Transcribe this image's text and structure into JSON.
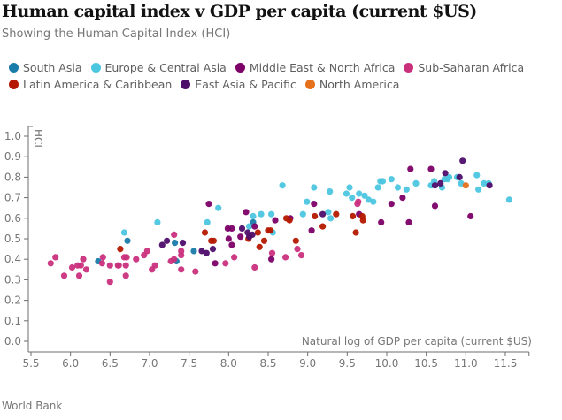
{
  "title": "Human capital index v GDP per capita (current $US)",
  "subtitle": "Showing the Human Capital Index (HCI)",
  "source": "World Bank",
  "legend": [
    {
      "key": "south_asia",
      "label": "South Asia",
      "color": "#197caa"
    },
    {
      "key": "europe",
      "label": "Europe & Central Asia",
      "color": "#4bc6df"
    },
    {
      "key": "mena",
      "label": "Middle East & North Africa",
      "color": "#7d0068"
    },
    {
      "key": "ssa",
      "label": "Sub-Saharan Africa",
      "color": "#c9307c"
    },
    {
      "key": "latam",
      "label": "Latin America & Caribbean",
      "color": "#b51800"
    },
    {
      "key": "eap",
      "label": "East Asia & Pacific",
      "color": "#4f0d6b"
    },
    {
      "key": "na",
      "label": "North America",
      "color": "#e6711b"
    }
  ],
  "chart_data": {
    "type": "scatter",
    "title": "Human capital index v GDP per capita (current $US)",
    "subtitle": "Showing the Human Capital Index (HCI)",
    "xlabel": "Natural log of GDP per capita (current $US)",
    "ylabel": "HCI",
    "xlim": [
      5.5,
      11.8
    ],
    "ylim": [
      0.0,
      1.0
    ],
    "xticks": [
      "5.5",
      "6.0",
      "6.5",
      "7.0",
      "7.5",
      "8.0",
      "8.5",
      "9.0",
      "9.5",
      "10.0",
      "10.5",
      "11.0",
      "11.5"
    ],
    "yticks": [
      "0.0",
      "0.1",
      "0.2",
      "0.3",
      "0.4",
      "0.5",
      "0.6",
      "0.7",
      "0.8",
      "0.9",
      "1.0"
    ],
    "legend_position": "top",
    "grid": false,
    "series": [
      {
        "name": "South Asia",
        "key": "south_asia",
        "points": [
          [
            6.35,
            0.39
          ],
          [
            6.72,
            0.49
          ],
          [
            7.32,
            0.48
          ],
          [
            7.34,
            0.39
          ],
          [
            7.56,
            0.44
          ],
          [
            8.31,
            0.58
          ]
        ]
      },
      {
        "name": "Europe & Central Asia",
        "key": "europe",
        "points": [
          [
            6.68,
            0.53
          ],
          [
            7.1,
            0.58
          ],
          [
            7.73,
            0.58
          ],
          [
            7.87,
            0.65
          ],
          [
            8.26,
            0.56
          ],
          [
            8.31,
            0.61
          ],
          [
            8.41,
            0.62
          ],
          [
            8.54,
            0.62
          ],
          [
            8.56,
            0.53
          ],
          [
            8.68,
            0.76
          ],
          [
            8.94,
            0.62
          ],
          [
            8.99,
            0.68
          ],
          [
            9.08,
            0.75
          ],
          [
            9.26,
            0.63
          ],
          [
            9.28,
            0.73
          ],
          [
            9.29,
            0.6
          ],
          [
            9.49,
            0.72
          ],
          [
            9.53,
            0.75
          ],
          [
            9.56,
            0.7
          ],
          [
            9.65,
            0.72
          ],
          [
            9.72,
            0.71
          ],
          [
            9.77,
            0.69
          ],
          [
            9.83,
            0.68
          ],
          [
            9.89,
            0.75
          ],
          [
            9.92,
            0.78
          ],
          [
            9.95,
            0.78
          ],
          [
            10.06,
            0.79
          ],
          [
            10.14,
            0.75
          ],
          [
            10.25,
            0.74
          ],
          [
            10.37,
            0.77
          ],
          [
            10.56,
            0.76
          ],
          [
            10.6,
            0.78
          ],
          [
            10.7,
            0.75
          ],
          [
            10.73,
            0.79
          ],
          [
            10.77,
            0.79
          ],
          [
            10.79,
            0.8
          ],
          [
            10.89,
            0.8
          ],
          [
            10.94,
            0.77
          ],
          [
            11.14,
            0.81
          ],
          [
            11.16,
            0.74
          ],
          [
            11.23,
            0.77
          ],
          [
            11.29,
            0.77
          ],
          [
            11.55,
            0.69
          ]
        ]
      },
      {
        "name": "Middle East & North Africa",
        "key": "mena",
        "points": [
          [
            7.75,
            0.67
          ],
          [
            7.99,
            0.55
          ],
          [
            8.04,
            0.55
          ],
          [
            8.0,
            0.5
          ],
          [
            8.04,
            0.47
          ],
          [
            8.15,
            0.51
          ],
          [
            7.83,
            0.38
          ],
          [
            8.22,
            0.63
          ],
          [
            8.33,
            0.56
          ],
          [
            8.54,
            0.4
          ],
          [
            8.59,
            0.59
          ],
          [
            8.78,
            0.6
          ],
          [
            9.05,
            0.54
          ],
          [
            9.08,
            0.67
          ],
          [
            9.65,
            0.62
          ],
          [
            9.93,
            0.58
          ],
          [
            10.06,
            0.67
          ],
          [
            10.2,
            0.7
          ],
          [
            10.28,
            0.58
          ],
          [
            10.3,
            0.84
          ],
          [
            10.56,
            0.84
          ],
          [
            10.61,
            0.66
          ],
          [
            11.06,
            0.61
          ]
        ]
      },
      {
        "name": "Sub-Saharan Africa",
        "key": "ssa",
        "points": [
          [
            5.75,
            0.38
          ],
          [
            5.81,
            0.41
          ],
          [
            5.92,
            0.32
          ],
          [
            6.02,
            0.36
          ],
          [
            6.09,
            0.37
          ],
          [
            6.13,
            0.37
          ],
          [
            6.16,
            0.4
          ],
          [
            6.11,
            0.32
          ],
          [
            6.2,
            0.35
          ],
          [
            6.41,
            0.41
          ],
          [
            6.4,
            0.38
          ],
          [
            6.5,
            0.37
          ],
          [
            6.5,
            0.29
          ],
          [
            6.6,
            0.37
          ],
          [
            6.68,
            0.41
          ],
          [
            6.71,
            0.41
          ],
          [
            6.61,
            0.37
          ],
          [
            6.7,
            0.37
          ],
          [
            6.7,
            0.32
          ],
          [
            6.83,
            0.4
          ],
          [
            6.93,
            0.42
          ],
          [
            6.97,
            0.44
          ],
          [
            7.03,
            0.35
          ],
          [
            7.07,
            0.37
          ],
          [
            7.31,
            0.52
          ],
          [
            7.4,
            0.44
          ],
          [
            7.4,
            0.42
          ],
          [
            7.27,
            0.39
          ],
          [
            7.31,
            0.4
          ],
          [
            7.4,
            0.35
          ],
          [
            7.58,
            0.34
          ],
          [
            7.96,
            0.38
          ],
          [
            8.07,
            0.41
          ],
          [
            8.33,
            0.36
          ],
          [
            8.55,
            0.43
          ],
          [
            8.72,
            0.41
          ],
          [
            8.87,
            0.45
          ],
          [
            8.92,
            0.42
          ],
          [
            9.63,
            0.67
          ],
          [
            9.64,
            0.68
          ]
        ]
      },
      {
        "name": "Latin America & Caribbean",
        "key": "latam",
        "points": [
          [
            6.63,
            0.45
          ],
          [
            7.7,
            0.53
          ],
          [
            7.78,
            0.49
          ],
          [
            7.81,
            0.49
          ],
          [
            8.25,
            0.5
          ],
          [
            8.37,
            0.53
          ],
          [
            8.39,
            0.46
          ],
          [
            8.45,
            0.49
          ],
          [
            8.5,
            0.54
          ],
          [
            8.53,
            0.54
          ],
          [
            8.73,
            0.6
          ],
          [
            8.77,
            0.59
          ],
          [
            8.85,
            0.49
          ],
          [
            9.09,
            0.61
          ],
          [
            9.19,
            0.56
          ],
          [
            9.36,
            0.62
          ],
          [
            9.57,
            0.61
          ],
          [
            9.61,
            0.53
          ],
          [
            9.69,
            0.61
          ],
          [
            9.7,
            0.59
          ]
        ]
      },
      {
        "name": "East Asia & Pacific",
        "key": "eap",
        "points": [
          [
            7.16,
            0.47
          ],
          [
            7.22,
            0.49
          ],
          [
            7.42,
            0.48
          ],
          [
            7.66,
            0.44
          ],
          [
            7.72,
            0.43
          ],
          [
            7.8,
            0.45
          ],
          [
            8.17,
            0.55
          ],
          [
            8.24,
            0.53
          ],
          [
            8.26,
            0.51
          ],
          [
            8.3,
            0.52
          ],
          [
            9.19,
            0.62
          ],
          [
            10.61,
            0.76
          ],
          [
            10.68,
            0.77
          ],
          [
            10.74,
            0.82
          ],
          [
            10.92,
            0.8
          ],
          [
            10.96,
            0.88
          ],
          [
            11.3,
            0.76
          ]
        ]
      },
      {
        "name": "North America",
        "key": "na",
        "points": [
          [
            11.0,
            0.76
          ]
        ]
      }
    ]
  }
}
